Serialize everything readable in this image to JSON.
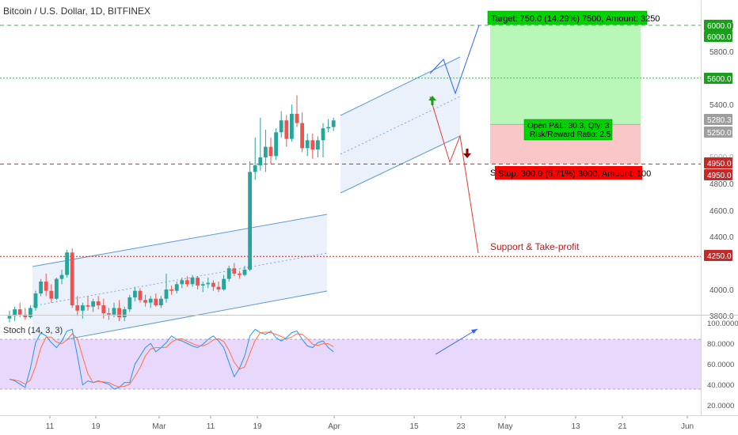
{
  "header": {
    "symbol_title": "Bitcoin / U.S. Dollar, 1D, BITFINEX"
  },
  "colors": {
    "up": "#26a69a",
    "down": "#ef5350",
    "channel": "#5b9bd5",
    "channel_fill": "#e3ecf9",
    "green_line": "#4caf50",
    "red_line": "#c62828",
    "accent_blue": "#2962ff",
    "target_box": "#00d300",
    "stop_box": "#ff0000",
    "profit_zone": "#b9f7b9",
    "loss_zone": "#f9c7c7",
    "stoch_band": "#e8d8fb",
    "k_line": "#2196f3",
    "d_line": "#ff7043"
  },
  "annotations": {
    "target": "Target: 750.0 (14.29%) 7500, Amount: 3250",
    "stop": "Stop: 300.0 (5.71%) 3000, Amount: 100",
    "stop_prefix": "S",
    "open_pnl": "Open P&L: 30.3, Qty: 3",
    "risk_reward": "Risk/Reward Ratio: 2.5",
    "support_note": "Support & Take-profit"
  },
  "price_axis": {
    "ticks": [
      "6000.0",
      "5800.0",
      "5400.0",
      "4800.0",
      "4600.0",
      "4400.0",
      "4000.0",
      "3800.0"
    ],
    "ticks_faint": [
      "5000.0"
    ],
    "badges": [
      {
        "text": "6000.0",
        "style": "green"
      },
      {
        "text": "6000.0",
        "style": "green"
      },
      {
        "text": "5600.0",
        "style": "green"
      },
      {
        "text": "5280.3",
        "style": "gray"
      },
      {
        "text": "5250.0",
        "style": "gray"
      },
      {
        "text": "4950.0",
        "style": "red"
      },
      {
        "text": "4950.0",
        "style": "red"
      },
      {
        "text": "4250.0",
        "style": "red"
      }
    ]
  },
  "stoch_axis": {
    "ticks": [
      "100.0000",
      "80.0000",
      "60.0000",
      "40.0000",
      "20.0000"
    ]
  },
  "stoch": {
    "title": "Stoch (14, 3, 3)"
  },
  "time_axis": {
    "ticks": [
      "11",
      "19",
      "Mar",
      "11",
      "19",
      "Apr",
      "15",
      "23",
      "May",
      "13",
      "21",
      "Jun"
    ]
  },
  "chart_data": {
    "type": "candlestick",
    "title": "Bitcoin / U.S. Dollar, 1D, BITFINEX",
    "ylim": [
      3800,
      6100
    ],
    "candles": [
      [
        3780,
        3840,
        3750,
        3800
      ],
      [
        3800,
        3870,
        3760,
        3850
      ],
      [
        3850,
        3900,
        3790,
        3810
      ],
      [
        3810,
        3860,
        3770,
        3790
      ],
      [
        3790,
        3880,
        3780,
        3860
      ],
      [
        3860,
        3990,
        3840,
        3970
      ],
      [
        3970,
        4080,
        3950,
        4060
      ],
      [
        4060,
        4120,
        3950,
        3990
      ],
      [
        3990,
        4040,
        3900,
        3930
      ],
      [
        3930,
        4090,
        3920,
        4080
      ],
      [
        4080,
        4150,
        4040,
        4110
      ],
      [
        4110,
        4300,
        4090,
        4280
      ],
      [
        4280,
        4310,
        3860,
        3880
      ],
      [
        3880,
        3950,
        3800,
        3840
      ],
      [
        3840,
        3900,
        3780,
        3880
      ],
      [
        3880,
        3950,
        3840,
        3870
      ],
      [
        3870,
        3930,
        3830,
        3910
      ],
      [
        3910,
        3950,
        3850,
        3880
      ],
      [
        3880,
        3930,
        3780,
        3820
      ],
      [
        3820,
        3860,
        3770,
        3810
      ],
      [
        3810,
        3900,
        3790,
        3860
      ],
      [
        3860,
        3920,
        3760,
        3790
      ],
      [
        3790,
        3870,
        3760,
        3850
      ],
      [
        3850,
        3960,
        3830,
        3940
      ],
      [
        3940,
        4020,
        3910,
        3990
      ],
      [
        3990,
        4010,
        3900,
        3920
      ],
      [
        3920,
        3960,
        3870,
        3900
      ],
      [
        3900,
        3950,
        3860,
        3930
      ],
      [
        3930,
        3970,
        3870,
        3880
      ],
      [
        3880,
        3950,
        3860,
        3930
      ],
      [
        3930,
        4120,
        3900,
        4000
      ],
      [
        4000,
        4030,
        3960,
        3990
      ],
      [
        3990,
        4060,
        3970,
        4040
      ],
      [
        4040,
        4090,
        4010,
        4070
      ],
      [
        4070,
        4100,
        4020,
        4040
      ],
      [
        4040,
        4110,
        4020,
        4090
      ],
      [
        4090,
        4100,
        4000,
        4030
      ],
      [
        4030,
        4060,
        3980,
        4040
      ],
      [
        4040,
        4090,
        4010,
        4050
      ],
      [
        4050,
        4070,
        3990,
        4020
      ],
      [
        4020,
        4060,
        3980,
        4000
      ],
      [
        4000,
        4110,
        3990,
        4080
      ],
      [
        4080,
        4180,
        4060,
        4160
      ],
      [
        4160,
        4200,
        4100,
        4120
      ],
      [
        4120,
        4140,
        4080,
        4110
      ],
      [
        4110,
        4180,
        4100,
        4150
      ],
      [
        4150,
        4970,
        4140,
        4890
      ],
      [
        4890,
        5150,
        4830,
        4940
      ],
      [
        4940,
        5300,
        4900,
        5000
      ],
      [
        5000,
        5210,
        4890,
        5080
      ],
      [
        5080,
        5150,
        4950,
        5010
      ],
      [
        5010,
        5220,
        4980,
        5190
      ],
      [
        5190,
        5350,
        5150,
        5280
      ],
      [
        5280,
        5320,
        5080,
        5140
      ],
      [
        5140,
        5400,
        5120,
        5330
      ],
      [
        5330,
        5470,
        5230,
        5260
      ],
      [
        5260,
        5340,
        5040,
        5070
      ],
      [
        5070,
        5180,
        5010,
        5130
      ],
      [
        5130,
        5180,
        4990,
        5060
      ],
      [
        5060,
        5160,
        5000,
        5130
      ],
      [
        5130,
        5260,
        5000,
        5220
      ],
      [
        5220,
        5290,
        5190,
        5230
      ],
      [
        5230,
        5300,
        5200,
        5280
      ]
    ],
    "price_lines": [
      {
        "price": 6000,
        "color": "green"
      },
      {
        "price": 5600,
        "color": "green"
      },
      {
        "price": 4950,
        "color": "red"
      },
      {
        "price": 4250,
        "color": "red"
      }
    ],
    "position": {
      "entry": 5250,
      "target": 6000,
      "stop": 4950
    },
    "stochastic": {
      "ylim": [
        0,
        100
      ],
      "k": [
        32,
        30,
        26,
        22,
        45,
        76,
        88,
        84,
        76,
        70,
        78,
        90,
        92,
        60,
        25,
        30,
        28,
        30,
        28,
        26,
        20,
        22,
        28,
        28,
        50,
        60,
        70,
        75,
        65,
        70,
        76,
        84,
        80,
        78,
        75,
        72,
        70,
        74,
        80,
        84,
        78,
        70,
        52,
        35,
        45,
        60,
        84,
        92,
        88,
        86,
        90,
        82,
        78,
        82,
        88,
        90,
        80,
        72,
        70,
        76,
        78,
        70,
        65
      ]
    }
  }
}
